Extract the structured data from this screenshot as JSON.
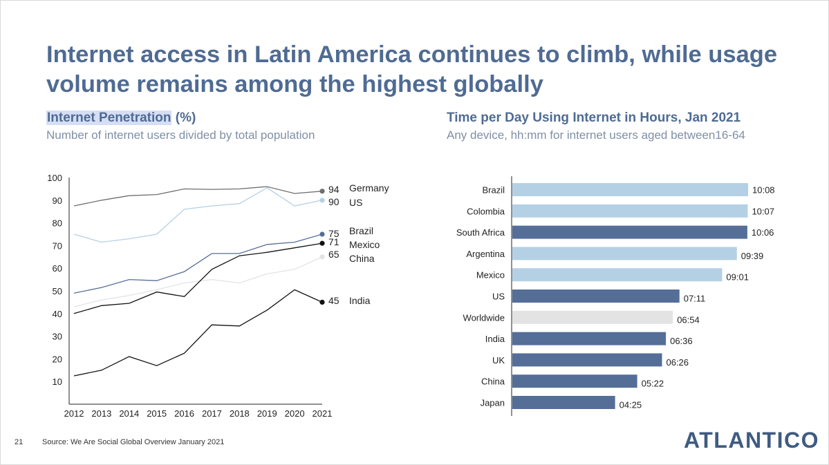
{
  "slide": {
    "title": "Internet access in Latin America continues to climb, while usage volume remains among the highest globally",
    "page_number": "21",
    "source": "Source: We Are Social Global Overview January 2021",
    "logo": "ATLANTICO"
  },
  "colors": {
    "title": "#4f6b93",
    "subtitle": "#7f8fa6",
    "dark_blue": "#546e97",
    "light_blue": "#b4d0e5",
    "light_gray": "#e3e3e3"
  },
  "chart_data": [
    {
      "type": "line",
      "title": "Internet Penetration",
      "title_highlighted": "Internet Penetration",
      "title_unit": " (%)",
      "subtitle": "Number of internet users divided by total population",
      "x": [
        2012,
        2013,
        2014,
        2015,
        2016,
        2017,
        2018,
        2019,
        2020,
        2021
      ],
      "x_tick_labels": [
        "2012",
        "2013",
        "2014",
        "2015",
        "2016",
        "2017",
        "2018",
        "2019",
        "2020",
        "2021"
      ],
      "y_tick_labels": [
        "10",
        "20",
        "30",
        "40",
        "50",
        "60",
        "70",
        "80",
        "90",
        "100"
      ],
      "ylim": [
        0,
        100
      ],
      "series": [
        {
          "name": "Germany",
          "end_label": "94",
          "color": "#6e6e6e",
          "values": [
            87.5,
            90,
            92,
            92.5,
            95,
            94.8,
            95,
            96,
            93,
            94
          ]
        },
        {
          "name": "US",
          "end_label": "90",
          "color": "#b4d0e5",
          "values": [
            75,
            71.5,
            73,
            75,
            86,
            87.5,
            88.5,
            95.5,
            87.5,
            90
          ]
        },
        {
          "name": "Brazil",
          "end_label": "75",
          "color": "#546e97",
          "values": [
            49,
            51.5,
            55,
            54.5,
            58.5,
            66.5,
            66.5,
            70.5,
            71.5,
            75
          ]
        },
        {
          "name": "Mexico",
          "end_label": "71",
          "color": "#111111",
          "values": [
            40,
            43.5,
            44.5,
            49.5,
            47.5,
            59.5,
            65.5,
            67,
            69,
            71
          ]
        },
        {
          "name": "China",
          "end_label": "65",
          "color": "#e3e3e3",
          "values": [
            43,
            46,
            48,
            50.5,
            53.5,
            55,
            53.5,
            57.5,
            59.5,
            65
          ]
        },
        {
          "name": "India",
          "end_label": "45",
          "color": "#111111",
          "values": [
            12.5,
            15,
            21,
            17,
            22.5,
            35,
            34.5,
            41.5,
            50.5,
            45
          ]
        }
      ]
    },
    {
      "type": "bar",
      "orientation": "horizontal",
      "title": "Time per Day Using Internet in Hours, Jan 2021",
      "subtitle": "Any device, hh:mm for internet users aged between16-64",
      "categories": [
        "Brazil",
        "Colombia",
        "South Africa",
        "Argentina",
        "Mexico",
        "US",
        "Worldwide",
        "India",
        "UK",
        "China",
        "Japan"
      ],
      "labels": [
        "10:08",
        "10:07",
        "10:06",
        "09:39",
        "09:01",
        "07:11",
        "06:54",
        "06:36",
        "06:26",
        "05:22",
        "04:25"
      ],
      "values_minutes": [
        608,
        607,
        606,
        579,
        541,
        431,
        414,
        396,
        386,
        322,
        265
      ],
      "bar_colors": [
        "#b4d0e5",
        "#b4d0e5",
        "#546e97",
        "#b4d0e5",
        "#b4d0e5",
        "#546e97",
        "#e3e3e3",
        "#546e97",
        "#546e97",
        "#546e97",
        "#546e97"
      ],
      "xlim": [
        0,
        608
      ]
    }
  ]
}
